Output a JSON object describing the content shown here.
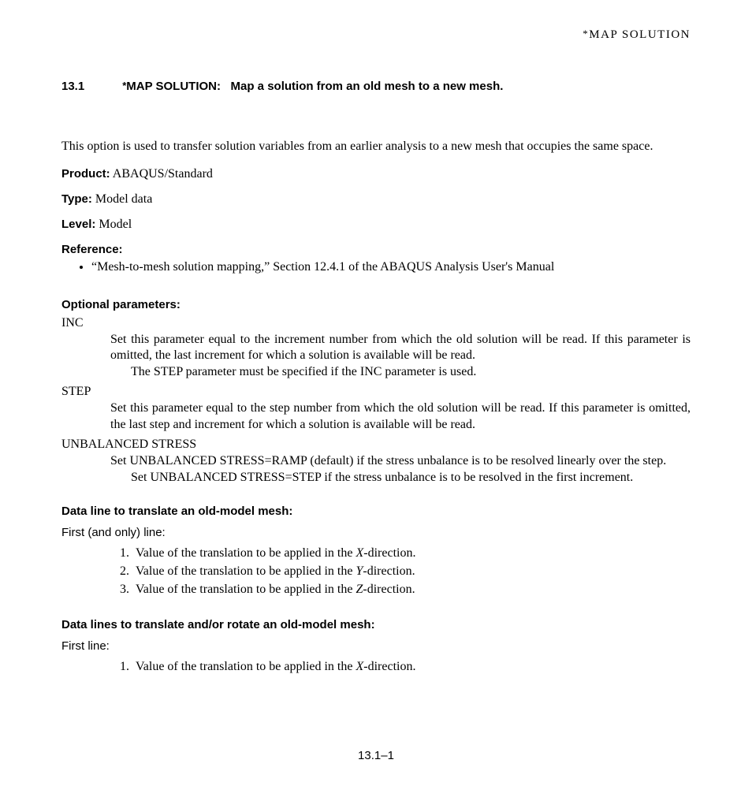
{
  "runningHead": {
    "star": "*",
    "text": "MAP  SOLUTION"
  },
  "heading": {
    "number": "13.1",
    "star": "*",
    "keyword": "MAP SOLUTION:",
    "title": "Map a solution from an old mesh to a new mesh."
  },
  "intro": "This option is used to transfer solution variables from an earlier analysis to a new mesh that occupies the same space.",
  "fields": {
    "productLabel": "Product:",
    "productValue": "  ABAQUS/Standard",
    "typeLabel": "Type:",
    "typeValue": "  Model data",
    "levelLabel": "Level:",
    "levelValue": "  Model"
  },
  "reference": {
    "label": "Reference:",
    "item": "“Mesh-to-mesh solution mapping,” Section 12.4.1 of the ABAQUS Analysis User's Manual"
  },
  "optional": {
    "heading": "Optional parameters:",
    "params": {
      "inc": {
        "name": "INC",
        "p1": "Set this parameter equal to the increment number from which the old solution will be read.  If this parameter is omitted, the last increment for which a solution is available will be read.",
        "p2": "The STEP parameter must be specified if the INC parameter is used."
      },
      "step": {
        "name": "STEP",
        "p1": "Set this parameter equal to the step number from which the old solution will be read.  If this parameter is omitted, the last step and increment for which a solution is available will be read."
      },
      "unbal": {
        "name": "UNBALANCED STRESS",
        "p1": "Set UNBALANCED STRESS=RAMP (default) if the stress unbalance is to be resolved linearly over the step.",
        "p2": "Set UNBALANCED STRESS=STEP if the stress unbalance is to be resolved in the first increment."
      }
    }
  },
  "dataline1": {
    "heading": "Data line to translate an old-model mesh:",
    "lineLabel": "First (and only) line:",
    "items": {
      "i1a": "Value of the translation to be applied in the ",
      "i1b": "X",
      "i1c": "-direction.",
      "i2a": "Value of the translation to be applied in the ",
      "i2b": "Y",
      "i2c": "-direction.",
      "i3a": "Value of the translation to be applied in the ",
      "i3b": "Z",
      "i3c": "-direction."
    }
  },
  "dataline2": {
    "heading": "Data lines to translate and/or rotate an old-model mesh:",
    "lineLabel": "First line:",
    "items": {
      "i1a": "Value of the translation to be applied in the ",
      "i1b": "X",
      "i1c": "-direction."
    }
  },
  "pageNumber": "13.1–1"
}
